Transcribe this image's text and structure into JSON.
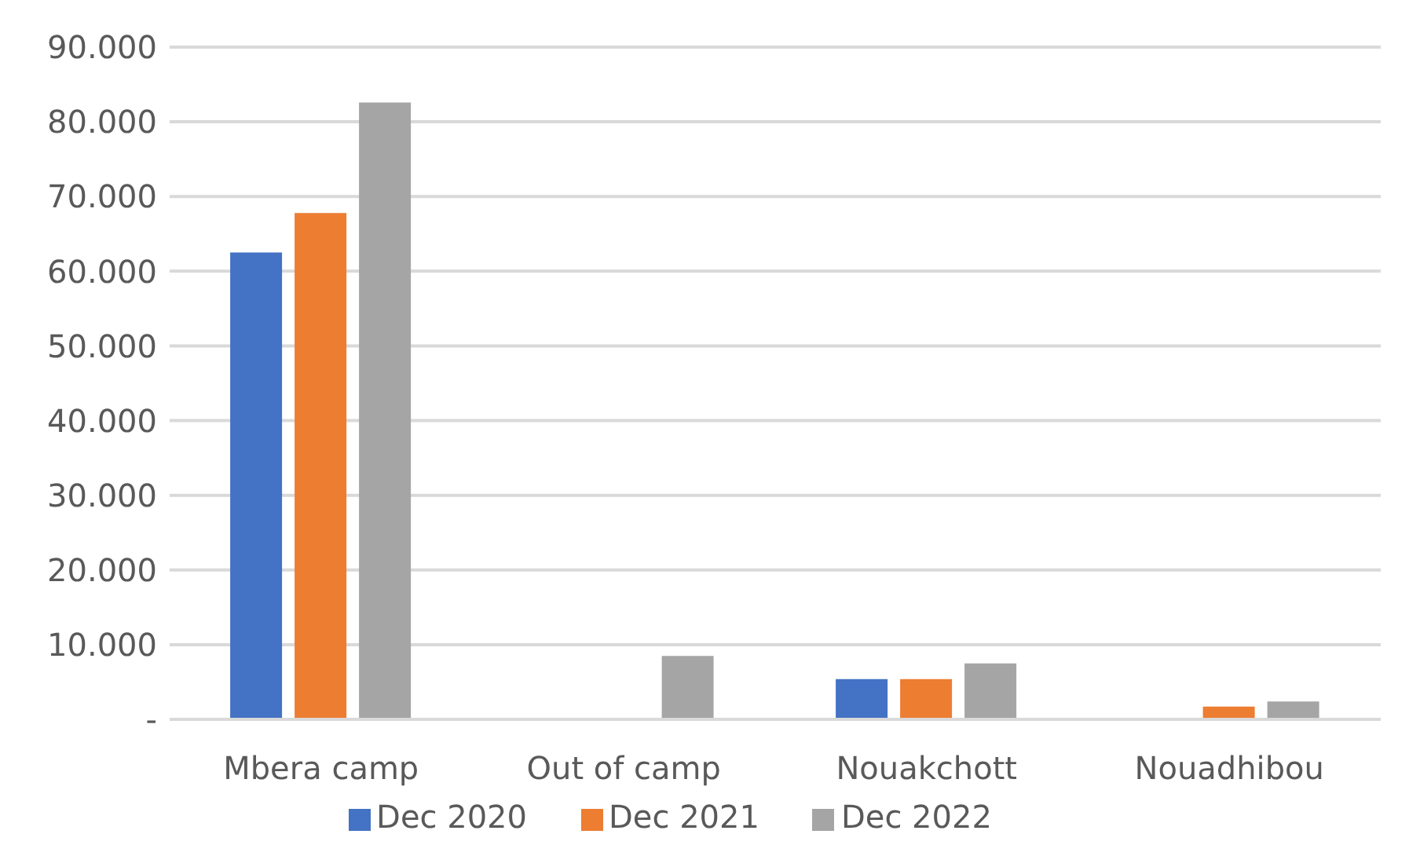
{
  "chart_data": {
    "type": "bar",
    "categories": [
      "Mbera camp",
      "Out of camp",
      "Nouakchott",
      "Nouadhibou"
    ],
    "series": [
      {
        "name": "Dec 2020",
        "color": "#4472c4",
        "values": [
          62500,
          null,
          5400,
          null
        ]
      },
      {
        "name": "Dec 2021",
        "color": "#ed7d31",
        "values": [
          67800,
          null,
          5400,
          1700
        ]
      },
      {
        "name": "Dec 2022",
        "color": "#a5a5a5",
        "values": [
          82600,
          8500,
          7500,
          2400
        ]
      }
    ],
    "ylim": [
      0,
      90000
    ],
    "yticks": [
      {
        "value": 0,
        "label": "-"
      },
      {
        "value": 10000,
        "label": "10.000"
      },
      {
        "value": 20000,
        "label": "20.000"
      },
      {
        "value": 30000,
        "label": "30.000"
      },
      {
        "value": 40000,
        "label": "40.000"
      },
      {
        "value": 50000,
        "label": "50.000"
      },
      {
        "value": 60000,
        "label": "60.000"
      },
      {
        "value": 70000,
        "label": "70.000"
      },
      {
        "value": 80000,
        "label": "80.000"
      },
      {
        "value": 90000,
        "label": "90.000"
      }
    ],
    "grid": "y",
    "legend": "bottom"
  }
}
